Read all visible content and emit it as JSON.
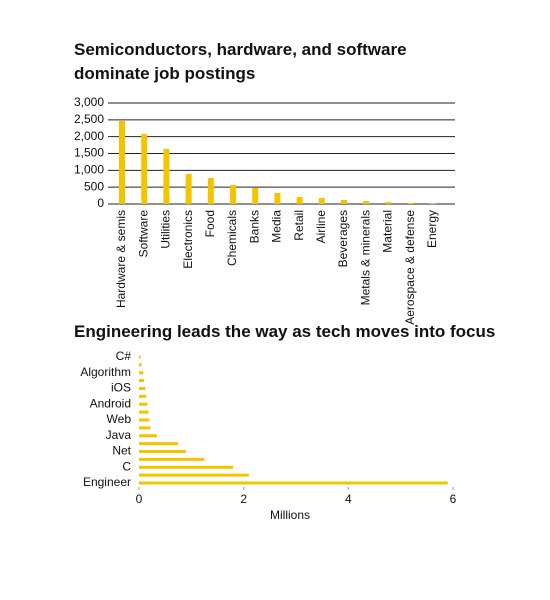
{
  "chart_data": [
    {
      "type": "bar",
      "title": "Semiconductors, hardware, and software dominate job postings",
      "categories": [
        "Hardware & semis",
        "Software",
        "Utilities",
        "Electronics",
        "Food",
        "Chemicals",
        "Banks",
        "Media",
        "Retail",
        "Airline",
        "Beverages",
        "Metals & minerals",
        "Material",
        "Aerospace & defense",
        "Energy"
      ],
      "values": [
        2465,
        2080,
        1634,
        891,
        772,
        564,
        475,
        327,
        208,
        178,
        119,
        89,
        59,
        30,
        10
      ],
      "color": "#f5c400",
      "ylim": [
        0,
        3000
      ],
      "yticks": [
        0,
        500,
        {
          "value": 1000,
          "label": "1,000"
        },
        {
          "value": 1500,
          "label": "1,500"
        },
        {
          "value": 2000,
          "label": "2,000"
        },
        {
          "value": 2500,
          "label": "2,500"
        },
        {
          "value": 3000,
          "label": "3,000"
        }
      ],
      "grid": true
    },
    {
      "type": "hbar",
      "title": "Engineering leads the way as tech moves into focus",
      "categories": [
        "C#",
        null,
        "Algorithm",
        null,
        "iOS",
        null,
        "Android",
        null,
        "Web",
        null,
        "Java",
        null,
        "Net",
        null,
        "C",
        null,
        "Engineer"
      ],
      "values": [
        0.03,
        0.05,
        0.08,
        0.1,
        0.12,
        0.14,
        0.16,
        0.18,
        0.2,
        0.22,
        0.34,
        0.75,
        0.9,
        1.25,
        1.8,
        2.1,
        5.9
      ],
      "color": "#f5c400",
      "xlabel": "Millions",
      "xlim": [
        0,
        6
      ],
      "xticks": [
        0,
        2,
        4,
        6
      ],
      "grid": false
    }
  ]
}
